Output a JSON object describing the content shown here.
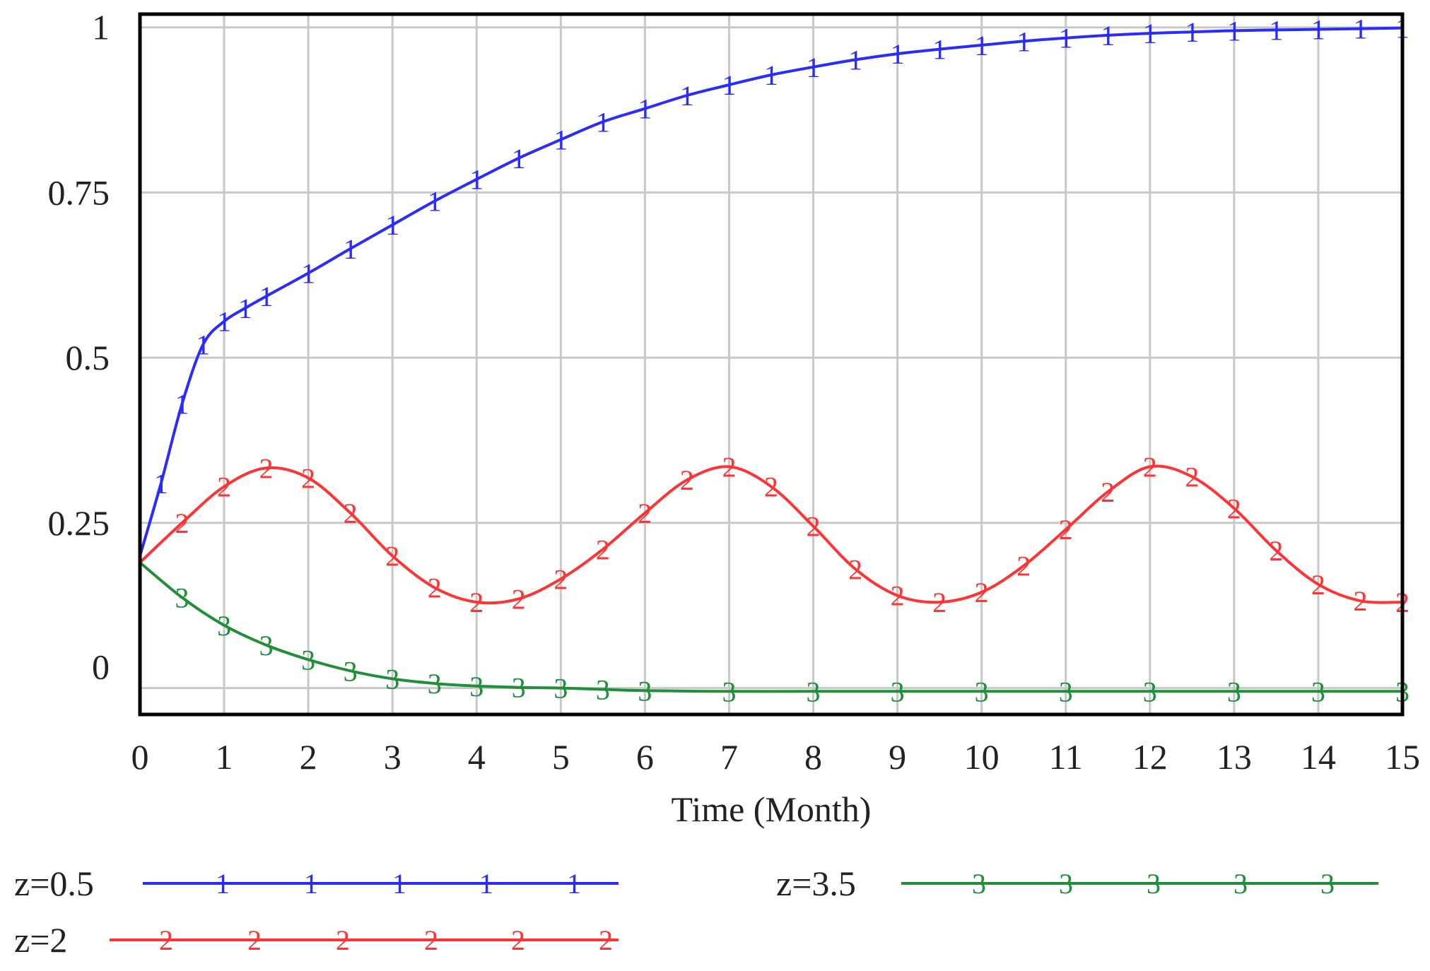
{
  "chart_data": {
    "type": "line",
    "xlabel": "Time (Month)",
    "ylabel": "",
    "xlim": [
      0,
      15
    ],
    "ylim": [
      -0.04,
      1.02
    ],
    "x_ticks": [
      "0",
      "1",
      "2",
      "3",
      "4",
      "5",
      "6",
      "7",
      "8",
      "9",
      "10",
      "11",
      "12",
      "13",
      "14",
      "15"
    ],
    "y_ticks": [
      "0",
      "0.25",
      "0.5",
      "0.75",
      "1"
    ],
    "y_tick_values": [
      0,
      0.25,
      0.5,
      0.75,
      1
    ],
    "grid": true,
    "legend_position": "bottom",
    "series": [
      {
        "name": "z=0.5",
        "marker": "1",
        "color": "#2b2bff",
        "x": [
          0,
          0.25,
          0.5,
          0.75,
          1,
          1.25,
          1.5,
          2,
          2.5,
          3,
          3.5,
          4,
          4.5,
          5,
          5.5,
          6,
          6.5,
          7,
          7.5,
          8,
          8.5,
          9,
          9.5,
          10,
          10.5,
          11,
          11.5,
          12,
          12.5,
          13,
          13.5,
          14,
          14.5,
          15
        ],
        "values": [
          0.2,
          0.31,
          0.43,
          0.52,
          0.555,
          0.575,
          0.593,
          0.628,
          0.665,
          0.701,
          0.737,
          0.77,
          0.802,
          0.83,
          0.857,
          0.877,
          0.897,
          0.913,
          0.928,
          0.94,
          0.951,
          0.96,
          0.967,
          0.973,
          0.979,
          0.984,
          0.988,
          0.991,
          0.993,
          0.995,
          0.996,
          0.997,
          0.998,
          0.999
        ]
      },
      {
        "name": "z=2",
        "marker": "2",
        "color": "#ff3333",
        "x": [
          0,
          0.5,
          1,
          1.5,
          2,
          2.5,
          3,
          3.5,
          4,
          4.5,
          5,
          5.5,
          6,
          6.5,
          7,
          7.5,
          8,
          8.5,
          9,
          9.5,
          10,
          10.5,
          11,
          11.5,
          12,
          12.5,
          13,
          13.5,
          14,
          14.5,
          15
        ],
        "values": [
          0.19,
          0.25,
          0.305,
          0.333,
          0.318,
          0.265,
          0.2,
          0.152,
          0.13,
          0.135,
          0.165,
          0.21,
          0.265,
          0.315,
          0.335,
          0.305,
          0.245,
          0.18,
          0.14,
          0.13,
          0.145,
          0.185,
          0.24,
          0.297,
          0.335,
          0.32,
          0.272,
          0.208,
          0.157,
          0.132,
          0.13
        ]
      },
      {
        "name": "z=3.5",
        "marker": "3",
        "color": "#1f8f3a",
        "x": [
          0,
          0.5,
          1,
          1.5,
          2,
          2.5,
          3,
          3.5,
          4,
          4.5,
          5,
          5.5,
          6,
          7,
          8,
          9,
          10,
          11,
          12,
          13,
          14,
          15
        ],
        "values": [
          0.19,
          0.137,
          0.095,
          0.065,
          0.043,
          0.026,
          0.014,
          0.007,
          0.003,
          0.001,
          0.0,
          -0.002,
          -0.004,
          -0.005,
          -0.005,
          -0.005,
          -0.005,
          -0.005,
          -0.005,
          -0.005,
          -0.005,
          -0.005
        ]
      }
    ]
  },
  "colors": {
    "frame": "#000000",
    "grid": "#c8c8c8",
    "text": "#222222"
  }
}
